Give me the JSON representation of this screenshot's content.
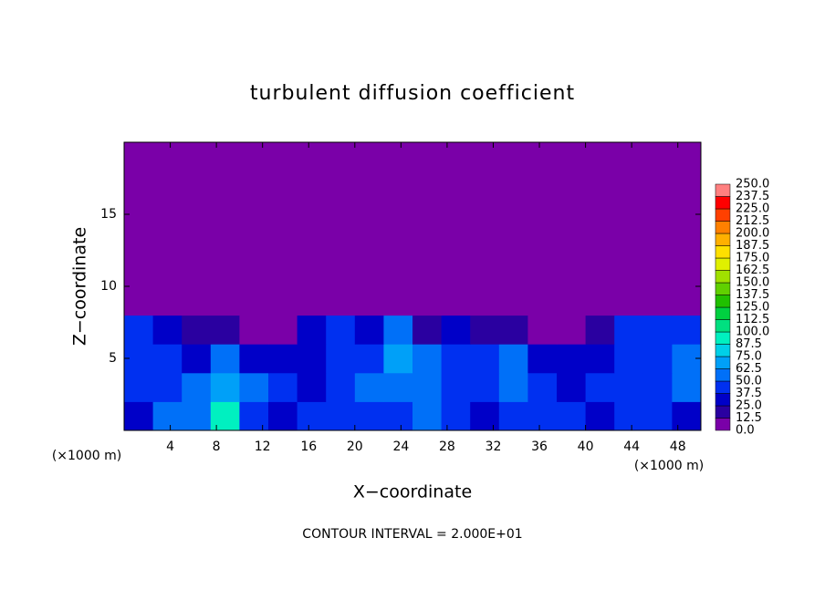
{
  "chart_data": {
    "type": "heatmap",
    "title": "turbulent diffusion coefficient",
    "x_label": "X−coordinate",
    "y_label": "Z−coordinate",
    "x_unit_label": "(×1000 m)",
    "y_unit_label": "(×1000 m)",
    "footnote": "CONTOUR INTERVAL = 2.000E+01",
    "xlim": [
      0,
      50
    ],
    "ylim": [
      0,
      20
    ],
    "xticks": [
      4,
      8,
      12,
      16,
      20,
      24,
      28,
      32,
      36,
      40,
      44,
      48
    ],
    "yticks": [
      5,
      10,
      15
    ],
    "x_edges": [
      0,
      2.5,
      5,
      7.5,
      10,
      12.5,
      15,
      17.5,
      20,
      22.5,
      25,
      27.5,
      30,
      32.5,
      35,
      37.5,
      40,
      42.5,
      45,
      47.5,
      50
    ],
    "z_edges": [
      0,
      2,
      4,
      6,
      8,
      20
    ],
    "z_values": [
      [
        30,
        55,
        60,
        90,
        40,
        35,
        45,
        40,
        45,
        40,
        50,
        40,
        35,
        40,
        45,
        40,
        30,
        40,
        40,
        35
      ],
      [
        40,
        45,
        60,
        70,
        50,
        40,
        35,
        45,
        50,
        60,
        55,
        40,
        45,
        55,
        40,
        35,
        40,
        45,
        40,
        50
      ],
      [
        45,
        40,
        35,
        60,
        35,
        30,
        30,
        40,
        45,
        70,
        50,
        40,
        45,
        50,
        35,
        30,
        35,
        40,
        45,
        50
      ],
      [
        40,
        35,
        15,
        20,
        5,
        5,
        30,
        40,
        35,
        60,
        20,
        25,
        20,
        15,
        10,
        10,
        20,
        40,
        40,
        45
      ],
      [
        3,
        0,
        0,
        0,
        0,
        0,
        0,
        2,
        0,
        5,
        0,
        0,
        0,
        0,
        0,
        0,
        0,
        0,
        0,
        3
      ]
    ],
    "colorbar_ticks": [
      {
        "value": 0,
        "label": "0.0"
      },
      12.5,
      {
        "value": 25,
        "label": "25.0"
      },
      37.5,
      {
        "value": 50,
        "label": "50.0"
      },
      62.5,
      {
        "value": 75,
        "label": "75.0"
      },
      87.5,
      {
        "value": 100,
        "label": "100.0"
      },
      112.5,
      {
        "value": 125,
        "label": "125.0"
      },
      137.5,
      {
        "value": 150,
        "label": "150.0"
      },
      162.5,
      {
        "value": 175,
        "label": "175.0"
      },
      187.5,
      {
        "value": 200,
        "label": "200.0"
      },
      212.5,
      {
        "value": 225,
        "label": "225.0"
      },
      237.5,
      {
        "value": 250,
        "label": "250.0"
      }
    ],
    "level_colors": [
      "#7a00a8",
      "#2a00a0",
      "#0000c8",
      "#0030f0",
      "#0070f8",
      "#00a0f8",
      "#00d0e8",
      "#00f0c0",
      "#00e080",
      "#00d040",
      "#20c000",
      "#60d000",
      "#a0e000",
      "#e0f000",
      "#ffe000",
      "#ffb000",
      "#ff8000",
      "#ff4000",
      "#ff0000",
      "#ff8080"
    ]
  }
}
